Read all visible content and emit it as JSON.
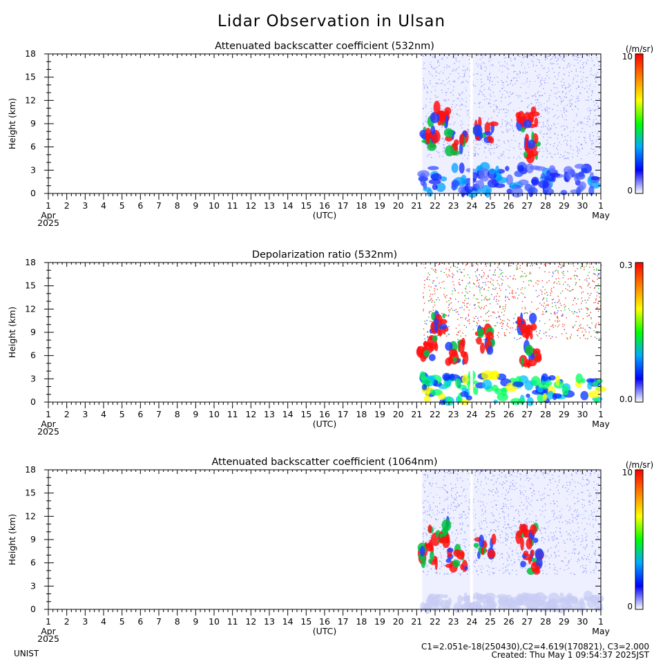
{
  "title": "Lidar Observation in Ulsan",
  "colors": {
    "background": "#ffffff",
    "axis": "#000000",
    "colorbar_stops": [
      "#ffffff",
      "#0000ff",
      "#00aaff",
      "#00ff00",
      "#ffff00",
      "#ff8000",
      "#ff0000"
    ]
  },
  "chart_data": [
    {
      "type": "heatmap",
      "title": "Attenuated backscatter coefficient (532nm)",
      "ylabel": "Height (km)",
      "xlabel": "(UTC)",
      "ylim": [
        0,
        18
      ],
      "yticks": [
        "0",
        "3",
        "6",
        "9",
        "12",
        "15",
        "18"
      ],
      "xticks": [
        "1",
        "2",
        "3",
        "4",
        "5",
        "6",
        "7",
        "8",
        "9",
        "10",
        "11",
        "12",
        "13",
        "14",
        "15",
        "16",
        "17",
        "18",
        "19",
        "20",
        "21",
        "22",
        "23",
        "24",
        "25",
        "26",
        "27",
        "28",
        "29",
        "30",
        "1"
      ],
      "x_start_label": "Apr",
      "x_end_label": "May",
      "year_label": "2025",
      "data_start_day": 21.3,
      "colorbar": {
        "unit": "(/m/sr)",
        "max_label": "10",
        "min_label": "0"
      }
    },
    {
      "type": "heatmap",
      "title": "Depolarization ratio (532nm)",
      "ylabel": "Height (km)",
      "xlabel": "(UTC)",
      "ylim": [
        0,
        18
      ],
      "yticks": [
        "0",
        "3",
        "6",
        "9",
        "12",
        "15",
        "18"
      ],
      "xticks": [
        "1",
        "2",
        "3",
        "4",
        "5",
        "6",
        "7",
        "8",
        "9",
        "10",
        "11",
        "12",
        "13",
        "14",
        "15",
        "16",
        "17",
        "18",
        "19",
        "20",
        "21",
        "22",
        "23",
        "24",
        "25",
        "26",
        "27",
        "28",
        "29",
        "30",
        "1"
      ],
      "x_start_label": "Apr",
      "x_end_label": "May",
      "year_label": "2025",
      "data_start_day": 21.3,
      "colorbar": {
        "unit": "",
        "max_label": "0.3",
        "min_label": "0.0"
      }
    },
    {
      "type": "heatmap",
      "title": "Attenuated backscatter coefficient (1064nm)",
      "ylabel": "Height (km)",
      "xlabel": "(UTC)",
      "ylim": [
        0,
        18
      ],
      "yticks": [
        "0",
        "3",
        "6",
        "9",
        "12",
        "15",
        "18"
      ],
      "xticks": [
        "1",
        "2",
        "3",
        "4",
        "5",
        "6",
        "7",
        "8",
        "9",
        "10",
        "11",
        "12",
        "13",
        "14",
        "15",
        "16",
        "17",
        "18",
        "19",
        "20",
        "21",
        "22",
        "23",
        "24",
        "25",
        "26",
        "27",
        "28",
        "29",
        "30",
        "1"
      ],
      "x_start_label": "Apr",
      "x_end_label": "May",
      "year_label": "2025",
      "data_start_day": 21.3,
      "colorbar": {
        "unit": "(/m/sr)",
        "max_label": "10",
        "min_label": "0"
      }
    }
  ],
  "footer": {
    "institution": "UNIST",
    "calibration": "C1=2.051e-18(250430),C2=4.619(170821), C3=2.000",
    "created": "Created: Thu May  1 09:54:37 2025JST"
  }
}
